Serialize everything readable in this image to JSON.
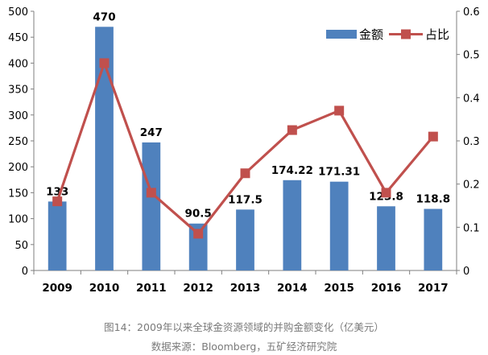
{
  "chart_data": {
    "type": "bar+line",
    "categories": [
      "2009",
      "2010",
      "2011",
      "2012",
      "2013",
      "2014",
      "2015",
      "2016",
      "2017"
    ],
    "series": [
      {
        "name": "金额",
        "type": "bar",
        "axis": "left",
        "values": [
          133,
          470,
          247,
          90.5,
          117.5,
          174.22,
          171.31,
          123.8,
          118.8
        ],
        "labels": [
          "133",
          "470",
          "247",
          "90.5",
          "117.5",
          "174.22",
          "171.31",
          "123.8",
          "118.8"
        ],
        "color": "#4f81bd"
      },
      {
        "name": "占比",
        "type": "line",
        "axis": "right",
        "values": [
          0.16,
          0.48,
          0.18,
          0.085,
          0.225,
          0.325,
          0.37,
          0.18,
          0.31
        ],
        "color": "#c0504d"
      }
    ],
    "y_left": {
      "min": 0,
      "max": 500,
      "ticks": [
        0,
        50,
        100,
        150,
        200,
        250,
        300,
        350,
        400,
        450,
        500
      ]
    },
    "y_right": {
      "min": 0,
      "max": 0.6,
      "ticks": [
        "0",
        "0.1",
        "0.2",
        "0.3",
        "0.4",
        "0.5",
        "0.6"
      ]
    },
    "grid": false,
    "legend_position": "top-right"
  },
  "captions": {
    "figure": "图14：2009年以来全球金资源领域的并购金额变化（亿美元）",
    "source": "数据来源：Bloomberg，五矿经济研究院"
  }
}
